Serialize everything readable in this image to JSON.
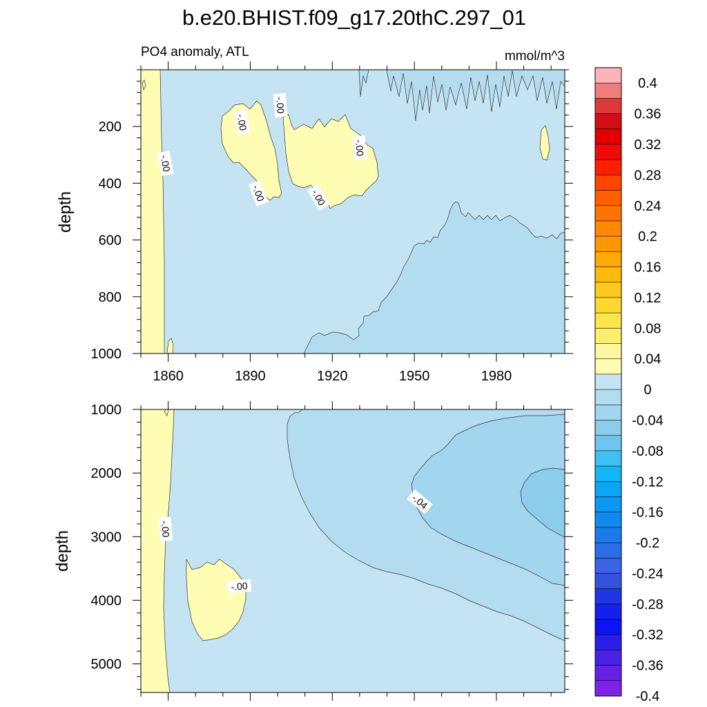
{
  "chart_data": {
    "type": "contour",
    "title": "b.e20.BHIST.f09_g17.20thC.297_01",
    "panels": [
      {
        "left_label": "PO4 anomaly, ATL",
        "right_label": "mmol/m^3",
        "ylabel": "depth",
        "x_tick_labels": [
          "1860",
          "1890",
          "1920",
          "1950",
          "1980"
        ],
        "x_ticks": [
          1860,
          1890,
          1920,
          1950,
          1980
        ],
        "xlim": [
          1850,
          2005
        ],
        "y_tick_labels": [
          "200",
          "400",
          "600",
          "800",
          "1000"
        ],
        "y_ticks": [
          200,
          400,
          600,
          800,
          1000
        ],
        "ylim": [
          0,
          1000
        ],
        "y_reversed": true,
        "contour_labels": [
          {
            "text": "-.00",
            "x": 1859,
            "y": 330,
            "angle": 80
          },
          {
            "text": "-.00",
            "x": 1887,
            "y": 185,
            "angle": 80
          },
          {
            "text": "-.00",
            "x": 1901,
            "y": 125,
            "angle": 85
          },
          {
            "text": "-.00",
            "x": 1893,
            "y": 435,
            "angle": 70
          },
          {
            "text": "-.00",
            "x": 1915,
            "y": 450,
            "angle": 60
          },
          {
            "text": "-.00",
            "x": 1930,
            "y": 275,
            "angle": 85
          }
        ]
      },
      {
        "left_label": "",
        "right_label": "",
        "ylabel": "depth",
        "x_tick_labels": [],
        "x_ticks": [
          1860,
          1890,
          1920,
          1950,
          1980
        ],
        "xlim": [
          1850,
          2005
        ],
        "y_tick_labels": [
          "1000",
          "2000",
          "3000",
          "4000",
          "5000"
        ],
        "y_ticks": [
          1000,
          2000,
          3000,
          4000,
          5000
        ],
        "ylim": [
          1000,
          5450
        ],
        "y_reversed": true,
        "contour_labels": [
          {
            "text": "-.00",
            "x": 1859,
            "y": 2880,
            "angle": 85
          },
          {
            "text": "-.00",
            "x": 1886,
            "y": 3780,
            "angle": -5
          },
          {
            "text": "-.04",
            "x": 1952,
            "y": 2450,
            "angle": 40
          }
        ]
      }
    ],
    "colorbar": {
      "tick_labels": [
        "0.4",
        "0.36",
        "0.32",
        "0.28",
        "0.24",
        "0.2",
        "0.16",
        "0.12",
        "0.08",
        "0.04",
        "0",
        "-0.04",
        "-0.08",
        "-0.12",
        "-0.16",
        "-0.2",
        "-0.24",
        "-0.28",
        "-0.32",
        "-0.36",
        "-0.4"
      ],
      "colors": [
        "#FBB4B9",
        "#F07C7C",
        "#DC3A3A",
        "#D00F14",
        "#E00000",
        "#F00A0A",
        "#FF1E00",
        "#FF4600",
        "#FF5F00",
        "#FF7300",
        "#FF8800",
        "#FF9800",
        "#FFAA00",
        "#FFBA10",
        "#FFCA20",
        "#FFD82E",
        "#FFE44A",
        "#FFEE6E",
        "#FFF6A2",
        "#FFFCB4",
        "#C5E4F3",
        "#B4DCF0",
        "#A2D5EE",
        "#8DCDEC",
        "#6EC6F0",
        "#3EC0F3",
        "#12B8F5",
        "#09A8F5",
        "#0B98F2",
        "#1189EE",
        "#1C7BEA",
        "#2A6DE6",
        "#3A62E2",
        "#3353DC",
        "#2035E4",
        "#1420EC",
        "#0A14F4",
        "#2A1EE8",
        "#4A22E6",
        "#6620E8",
        "#7E22E6"
      ],
      "fill_colors": {
        "positive_0_to_0.02": "#FFFCB4",
        "negative_0_to_-0.02": "#C5E4F3",
        "negative_-0.02_to_-0.04": "#B4DCF0",
        "negative_-0.04_to_-0.06": "#A2D5EE",
        "negative_-0.06_to_-0.08": "#8DCDEC"
      }
    }
  }
}
